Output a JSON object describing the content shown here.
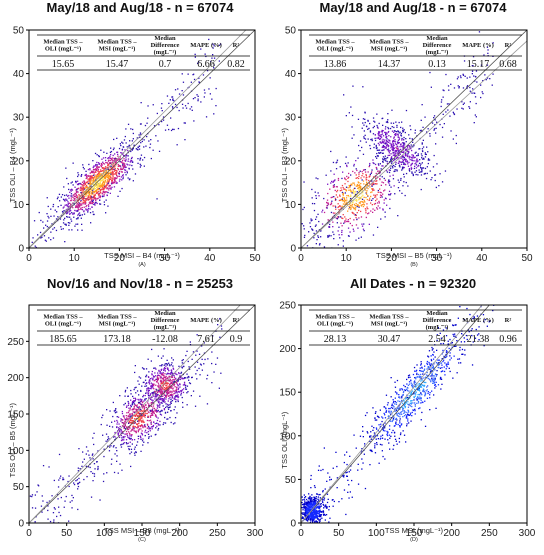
{
  "chart_data": [
    {
      "type": "scatter",
      "panel_label": "(A)",
      "title": "May/18 and Aug/18 - n = 67074",
      "xlabel": "TSS MSI – B4 (mgL⁻¹)",
      "ylabel": "TSS OLI – B4 (mgL⁻¹)",
      "xlim": [
        0,
        50
      ],
      "ylim": [
        0,
        50
      ],
      "xticks": [
        "0",
        "10",
        "20",
        "30",
        "40",
        "50"
      ],
      "yticks": [
        "0",
        "10",
        "20",
        "30",
        "40",
        "50"
      ],
      "stats_table": {
        "headers": [
          "Median TSS – OLI (mgL⁻¹)",
          "Median TSS – MSI (mgL⁻¹)",
          "Median Difference (mgL⁻¹)",
          "MAPE (%)",
          "R²"
        ],
        "values": [
          "15.65",
          "15.47",
          "0.7",
          "6.66",
          "0.82"
        ]
      },
      "fit_lines": [
        {
          "slope": 1.0,
          "intercept": 0
        },
        {
          "slope": 1.04,
          "intercept": 0.1
        }
      ],
      "density_clusters": [
        {
          "center": [
            15,
            15
          ],
          "spread": [
            5,
            1.8
          ],
          "weight": 1.0
        }
      ]
    },
    {
      "type": "scatter",
      "panel_label": "(B)",
      "title": "May/18 and Aug/18 - n = 67074",
      "xlabel": "TSS MSI – B5 (mgL⁻¹)",
      "ylabel": "TSS OLI – B3 (mgL⁻¹)",
      "xlim": [
        0,
        50
      ],
      "ylim": [
        0,
        50
      ],
      "xticks": [
        "0",
        "10",
        "20",
        "30",
        "40",
        "50"
      ],
      "yticks": [
        "0",
        "10",
        "20",
        "30",
        "40",
        "50"
      ],
      "stats_table": {
        "headers": [
          "Median TSS – OLI (mgL⁻¹)",
          "Median TSS – MSI (mgL⁻¹)",
          "Median Difference (mgL⁻¹)",
          "MAPE (%)",
          "R²"
        ],
        "values": [
          "13.86",
          "14.37",
          "0.13",
          "15.17",
          "0.68"
        ]
      },
      "fit_lines": [
        {
          "slope": 1.0,
          "intercept": 0
        },
        {
          "slope": 0.95,
          "intercept": 0
        }
      ],
      "density_clusters": [
        {
          "center": [
            12,
            12
          ],
          "spread": [
            5,
            3.5
          ],
          "weight": 1.0
        },
        {
          "center": [
            21,
            23
          ],
          "spread": [
            2,
            5
          ],
          "weight": 0.35
        }
      ]
    },
    {
      "type": "scatter",
      "panel_label": "(C)",
      "title": "Nov/16 and Nov/18 - n = 25253",
      "xlabel": "TSS MSI – B8 (mgL⁻¹)",
      "ylabel": "TSS OLI – B5 (mgL⁻¹)",
      "xlim": [
        0,
        300
      ],
      "ylim": [
        0,
        300
      ],
      "xticks": [
        "0",
        "50",
        "100",
        "150",
        "200",
        "250",
        "300"
      ],
      "yticks": [
        "0",
        "50",
        "100",
        "150",
        "200",
        "250"
      ],
      "stats_table": {
        "headers": [
          "Median TSS – OLI (mgL⁻¹)",
          "Median TSS – MSI (mgL⁻¹)",
          "Median Difference (mgL⁻¹)",
          "MAPE (%)",
          "R²"
        ],
        "values": [
          "185.65",
          "173.18",
          "-12.08",
          "7.61",
          "0.9"
        ]
      },
      "fit_lines": [
        {
          "slope": 1.0,
          "intercept": 0
        },
        {
          "slope": 1.07,
          "intercept": 0
        }
      ],
      "density_clusters": [
        {
          "center": [
            180,
            190
          ],
          "spread": [
            15,
            15
          ],
          "weight": 0.6
        },
        {
          "center": [
            145,
            145
          ],
          "spread": [
            22,
            14
          ],
          "weight": 0.7
        }
      ]
    },
    {
      "type": "scatter",
      "panel_label": "(D)",
      "title": "All Dates - n = 92320",
      "xlabel": "TSS MSI (mgL⁻¹)",
      "ylabel": "TSS OLI (mgL⁻¹)",
      "xlim": [
        0,
        300
      ],
      "ylim": [
        0,
        250
      ],
      "xticks": [
        "0",
        "50",
        "100",
        "150",
        "200",
        "250",
        "300"
      ],
      "yticks": [
        "0",
        "50",
        "100",
        "150",
        "200",
        "250"
      ],
      "stats_table": {
        "headers": [
          "Median TSS – OLI (mgL⁻¹)",
          "Median TSS – MSI (mgL⁻¹)",
          "Median Difference (mgL⁻¹)",
          "MAPE (%)",
          "R²"
        ],
        "values": [
          "28.13",
          "30.47",
          "2.54",
          "21.38",
          "0.96"
        ]
      },
      "fit_lines": [
        {
          "slope": 1.0,
          "intercept": 0
        },
        {
          "slope": 1.04,
          "intercept": 0
        }
      ],
      "density_clusters": [
        {
          "center": [
            15,
            15
          ],
          "spread": [
            8,
            8
          ],
          "weight": 0.5
        },
        {
          "center": [
            150,
            150
          ],
          "spread": [
            40,
            10
          ],
          "weight": 1.0
        }
      ]
    }
  ],
  "colors": {
    "hot_colormap": [
      "#2a0fb0",
      "#7a14c6",
      "#c41e8f",
      "#f0404a",
      "#ff9a1e",
      "#ffe45a"
    ],
    "blue_colormap": [
      "#0000cc",
      "#1428ff",
      "#3a6bff",
      "#2fa8ff"
    ],
    "axis": "#000000"
  }
}
